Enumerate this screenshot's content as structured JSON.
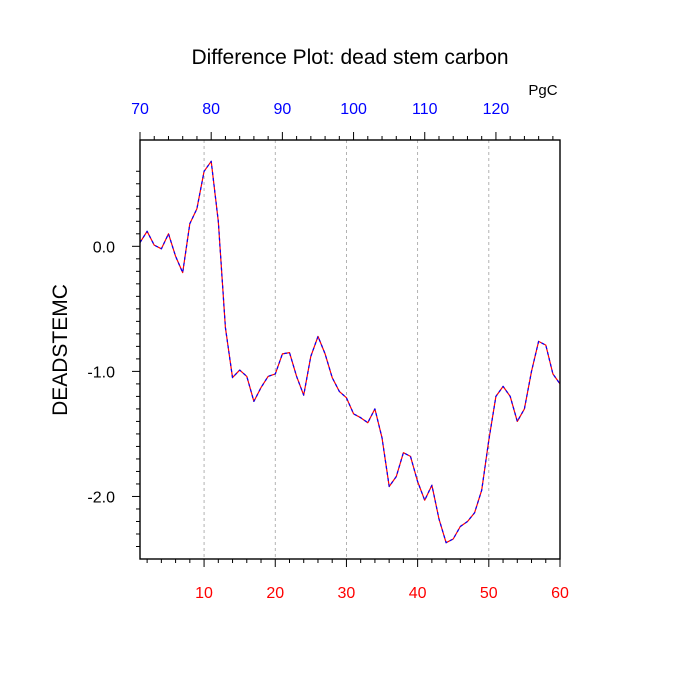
{
  "chart_data": {
    "type": "line",
    "title": "Difference Plot: dead stem carbon",
    "ylabel": "DEADSTEMC",
    "top_axis_unit": "PgC",
    "xlim": [
      1,
      60
    ],
    "ylim": [
      -2.5,
      0.85
    ],
    "top_xlim": [
      70,
      129
    ],
    "bottom_ticks": [
      {
        "value": 10,
        "label": "10"
      },
      {
        "value": 20,
        "label": "20"
      },
      {
        "value": 30,
        "label": "30"
      },
      {
        "value": 40,
        "label": "40"
      },
      {
        "value": 50,
        "label": "50"
      },
      {
        "value": 60,
        "label": "60"
      }
    ],
    "top_ticks": [
      {
        "value": 70,
        "label": "70"
      },
      {
        "value": 80,
        "label": "80"
      },
      {
        "value": 90,
        "label": "90"
      },
      {
        "value": 100,
        "label": "100"
      },
      {
        "value": 110,
        "label": "110"
      },
      {
        "value": 120,
        "label": "120"
      }
    ],
    "y_ticks": [
      {
        "value": 0,
        "label": "0.0"
      },
      {
        "value": -1,
        "label": "-1.0"
      },
      {
        "value": -2,
        "label": "-2.0"
      }
    ],
    "vertical_gridlines": [
      10,
      20,
      30,
      40,
      50
    ],
    "colors": {
      "bottom_tick_labels": "#ff0000",
      "top_tick_labels": "#0000ff",
      "line_primary": "#ff0000",
      "line_overlay": "#0000ff",
      "grid": "#a0a0a0"
    },
    "series": [
      {
        "x": [
          1,
          2,
          3,
          4,
          5,
          6,
          7,
          8,
          9,
          10,
          11,
          12,
          13,
          14,
          15,
          16,
          17,
          18,
          19,
          20,
          21,
          22,
          23,
          24,
          25,
          26,
          27,
          28,
          29,
          30,
          31,
          32,
          33,
          34,
          35,
          36,
          37,
          38,
          39,
          40,
          41,
          42,
          43,
          44,
          45,
          46,
          47,
          48,
          49,
          50,
          51,
          52,
          53,
          54,
          55,
          56,
          57,
          58,
          59,
          60
        ],
        "values": [
          0.03,
          0.12,
          0.01,
          -0.02,
          0.1,
          -0.08,
          -0.21,
          0.18,
          0.3,
          0.6,
          0.68,
          0.2,
          -0.65,
          -1.05,
          -0.99,
          -1.04,
          -1.24,
          -1.13,
          -1.04,
          -1.02,
          -0.86,
          -0.85,
          -1.04,
          -1.19,
          -0.88,
          -0.72,
          -0.86,
          -1.05,
          -1.16,
          -1.21,
          -1.34,
          -1.37,
          -1.41,
          -1.3,
          -1.53,
          -1.92,
          -1.84,
          -1.65,
          -1.68,
          -1.88,
          -2.03,
          -1.91,
          -2.18,
          -2.37,
          -2.34,
          -2.24,
          -2.2,
          -2.13,
          -1.95,
          -1.55,
          -1.2,
          -1.12,
          -1.2,
          -1.4,
          -1.3,
          -1.0,
          -0.76,
          -0.79,
          -1.02,
          -1.1
        ]
      }
    ]
  }
}
